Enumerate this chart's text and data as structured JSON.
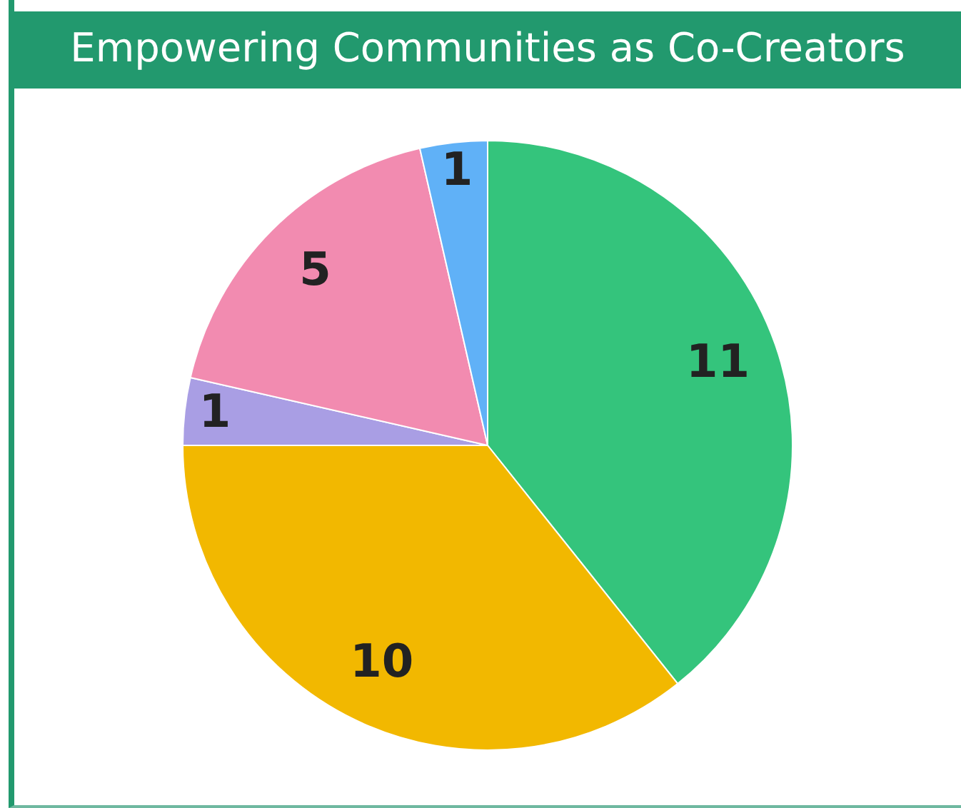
{
  "chart_data": {
    "type": "pie",
    "title": "Empowering Communities as Co-Creators",
    "categories": [
      null,
      null,
      null,
      null,
      null
    ],
    "values": [
      11,
      10,
      1,
      5,
      1
    ],
    "colors": [
      "#34c47c",
      "#f2b800",
      "#a99ee4",
      "#f28bb0",
      "#60b1f7"
    ],
    "data_labels": true
  }
}
